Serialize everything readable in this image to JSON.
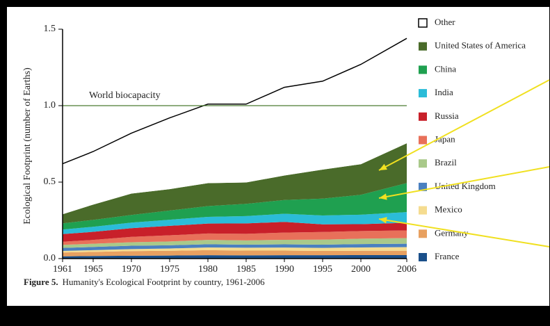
{
  "chart_data": {
    "type": "stacked_area",
    "ylabel": "Ecological Footprint (number of Earths)",
    "x": [
      1961,
      1965,
      1970,
      1975,
      1980,
      1985,
      1990,
      1995,
      2000,
      2006
    ],
    "xlim": [
      1961,
      2006
    ],
    "xticks": [
      1961,
      1965,
      1970,
      1975,
      1980,
      1985,
      1990,
      1995,
      2000,
      2006
    ],
    "ylim": [
      0,
      1.5
    ],
    "yticks": [
      {
        "value": 0,
        "label": "0.0"
      },
      0.5,
      {
        "value": 1,
        "label": "1.0"
      },
      1.5
    ],
    "reference_line": {
      "label": "World biocapacity",
      "value": 1,
      "color": "#4a7a30"
    },
    "series": [
      {
        "name": "France",
        "color": "#1a4f8a",
        "values": [
          0.015,
          0.017,
          0.019,
          0.02,
          0.022,
          0.021,
          0.022,
          0.022,
          0.023,
          0.023
        ]
      },
      {
        "name": "Germany",
        "color": "#e8a060",
        "values": [
          0.025,
          0.027,
          0.03,
          0.031,
          0.033,
          0.031,
          0.03,
          0.028,
          0.028,
          0.028
        ]
      },
      {
        "name": "Mexico",
        "color": "#f5dc90",
        "values": [
          0.01,
          0.011,
          0.013,
          0.015,
          0.018,
          0.019,
          0.02,
          0.02,
          0.022,
          0.024
        ]
      },
      {
        "name": "United Kingdom",
        "color": "#4a80c0",
        "values": [
          0.02,
          0.021,
          0.022,
          0.021,
          0.021,
          0.02,
          0.021,
          0.021,
          0.022,
          0.022
        ]
      },
      {
        "name": "Brazil",
        "color": "#a9c98a",
        "values": [
          0.02,
          0.021,
          0.023,
          0.025,
          0.028,
          0.028,
          0.03,
          0.033,
          0.035,
          0.037
        ]
      },
      {
        "name": "Japan",
        "color": "#e8705a",
        "values": [
          0.02,
          0.025,
          0.035,
          0.04,
          0.042,
          0.043,
          0.047,
          0.05,
          0.05,
          0.05
        ]
      },
      {
        "name": "Russia",
        "color": "#c8202a",
        "values": [
          0.05,
          0.053,
          0.057,
          0.062,
          0.065,
          0.068,
          0.07,
          0.05,
          0.045,
          0.05
        ]
      },
      {
        "name": "India",
        "color": "#2bbcd8",
        "values": [
          0.03,
          0.033,
          0.036,
          0.04,
          0.044,
          0.048,
          0.053,
          0.058,
          0.062,
          0.07
        ]
      },
      {
        "name": "China",
        "color": "#1fa050",
        "values": [
          0.04,
          0.045,
          0.05,
          0.06,
          0.07,
          0.08,
          0.09,
          0.11,
          0.13,
          0.19
        ]
      },
      {
        "name": "United States of America",
        "color": "#4a6b2a",
        "values": [
          0.06,
          0.1,
          0.14,
          0.14,
          0.15,
          0.14,
          0.16,
          0.19,
          0.2,
          0.26
        ]
      },
      {
        "name": "Other",
        "color": "#ffffff",
        "values": [
          0.33,
          0.347,
          0.395,
          0.466,
          0.517,
          0.512,
          0.577,
          0.578,
          0.653,
          0.686
        ]
      }
    ],
    "caption_label": "Figure 5.",
    "caption": "Humanity's Ecological Footprint by country, 1961-2006"
  }
}
